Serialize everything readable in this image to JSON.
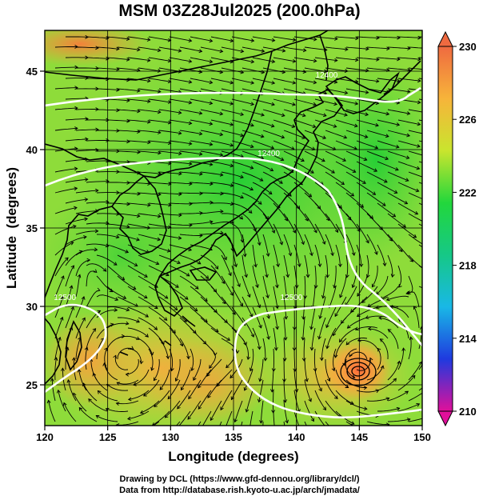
{
  "title": "MSM 03Z28Jul2025 (200.0hPa)",
  "map": {
    "xlabel": "Longitude (degrees)",
    "ylabel": "Latitude  (degrees)",
    "x_range": [
      120,
      150
    ],
    "y_range": [
      22.4,
      47.6
    ],
    "x_ticks": [
      "120",
      "125",
      "130",
      "135",
      "140",
      "145",
      "150"
    ],
    "y_ticks": [
      "25",
      "30",
      "35",
      "40",
      "45"
    ],
    "gridlines": true,
    "contour_labels": [
      {
        "text": "12400",
        "lon": 142.4,
        "lat": 44.6
      },
      {
        "text": "12400",
        "lon": 137.8,
        "lat": 39.6
      },
      {
        "text": "12500",
        "lon": 121.6,
        "lat": 30.4
      },
      {
        "text": "12500",
        "lon": 139.6,
        "lat": 30.4
      }
    ],
    "features": [
      {
        "name": "typhoon-vortex",
        "lon": 144.9,
        "lat": 26.4
      },
      {
        "name": "cyclonic-center",
        "lon": 135.2,
        "lat": 35.4
      }
    ]
  },
  "colorbar": {
    "tick_labels": [
      "230",
      "226",
      "222",
      "218",
      "214",
      "210"
    ],
    "range": [
      210,
      230
    ],
    "colors": [
      "#e0109a",
      "#1f3adf",
      "#19b8e6",
      "#16c886",
      "#22d73c",
      "#c9e52e",
      "#f7b43a",
      "#ef6a40"
    ]
  },
  "credits": {
    "line1": "Drawing by DCL (https://www.gfd-dennou.org/library/dcl/)",
    "line2": "Data from http://database.rish.kyoto-u.ac.jp/arch/jmadata/"
  }
}
